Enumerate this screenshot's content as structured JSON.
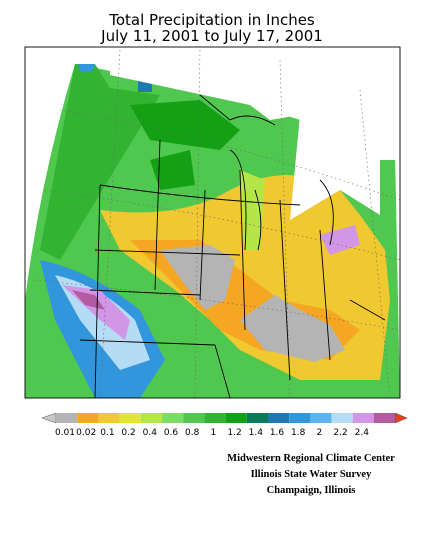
{
  "header": {
    "title": [
      "Total Precipitation in Inches",
      "July 11, 2001  to July 17, 2001"
    ]
  },
  "legend": {
    "labels": [
      "0.01",
      "0.02",
      "0.1",
      "0.2",
      "0.4",
      "0.6",
      "0.8",
      "1",
      "1.2",
      "1.4",
      "1.6",
      "1.8",
      "2",
      "2.2",
      "2.4"
    ],
    "colors": [
      "#c8c8c8",
      "#b4b4b4",
      "#f5a623",
      "#f0c830",
      "#e1e632",
      "#b4e646",
      "#7ddc64",
      "#50c850",
      "#32b432",
      "#14a014",
      "#0a7a5a",
      "#1e78b4",
      "#3296dc",
      "#5ab4f0",
      "#b4dcf5",
      "#d296e6",
      "#b45aa0",
      "#e0401e"
    ]
  },
  "credits": [
    "Midwestern Regional Climate Center",
    "Illinois State Water Survey",
    "Champaign, Illinois"
  ]
}
